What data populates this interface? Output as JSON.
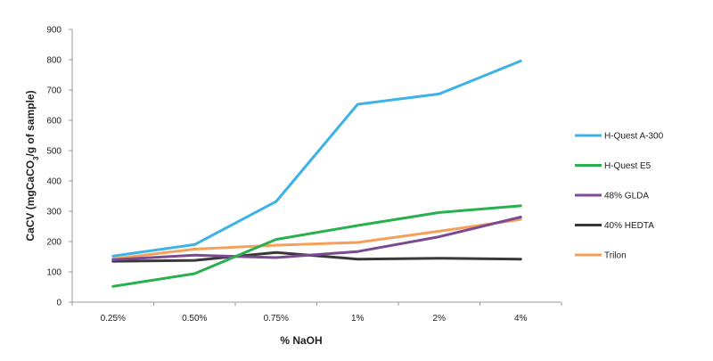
{
  "chart_data": {
    "type": "line",
    "categories": [
      "0.25%",
      "0.50%",
      "0.75%",
      "1%",
      "2%",
      "4%"
    ],
    "xlabel": "% NaOH",
    "ylabel": {
      "main": "CaCV (mgCaCO",
      "sub": "3",
      "tail": "/g of sample)"
    },
    "ylim": [
      0,
      900
    ],
    "yticks": [
      0,
      100,
      200,
      300,
      400,
      500,
      600,
      700,
      800,
      900
    ],
    "grid": false,
    "legend_position": "right",
    "series": [
      {
        "name": "H-Quest A-300",
        "color": "#3cb2e6",
        "values": [
          152,
          190,
          332,
          653,
          687,
          796
        ]
      },
      {
        "name": "H-Quest E5",
        "color": "#28b04e",
        "values": [
          52,
          94,
          207,
          253,
          296,
          318
        ]
      },
      {
        "name": "48% GLDA",
        "color": "#7a4b94",
        "values": [
          140,
          155,
          147,
          167,
          216,
          281
        ]
      },
      {
        "name": "40% HEDTA",
        "color": "#383838",
        "values": [
          135,
          138,
          164,
          142,
          145,
          142
        ]
      },
      {
        "name": "Trilon",
        "color": "#f5a05a",
        "values": [
          143,
          175,
          188,
          197,
          234,
          273
        ]
      }
    ]
  }
}
